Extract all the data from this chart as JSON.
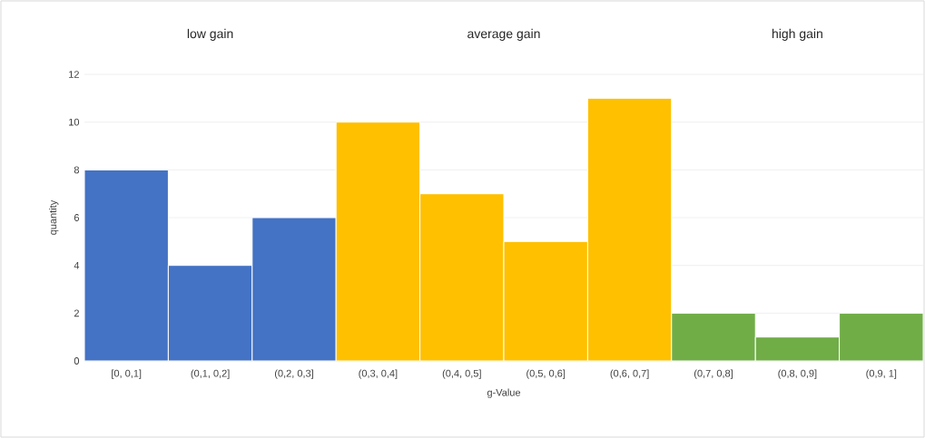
{
  "chart_data": {
    "type": "bar",
    "xlabel": "g-Value",
    "ylabel": "quantity",
    "categories": [
      "[0, 0,1]",
      "(0,1, 0,2]",
      "(0,2, 0,3]",
      "(0,3, 0,4]",
      "(0,4, 0,5]",
      "(0,5, 0,6]",
      "(0,6, 0,7]",
      "(0,7, 0,8]",
      "(0,8, 0,9]",
      "(0,9, 1]"
    ],
    "values": [
      8,
      4,
      6,
      10,
      7,
      5,
      11,
      2,
      1,
      2
    ],
    "colors": [
      "#4472c4",
      "#4472c4",
      "#4472c4",
      "#ffc000",
      "#ffc000",
      "#ffc000",
      "#ffc000",
      "#70ad47",
      "#70ad47",
      "#70ad47"
    ],
    "ylim": [
      0,
      12
    ],
    "yticks": [
      0,
      2,
      4,
      6,
      8,
      10,
      12
    ],
    "grid": "y",
    "annotations": [
      "low gain",
      "average gain",
      "high gain"
    ]
  }
}
